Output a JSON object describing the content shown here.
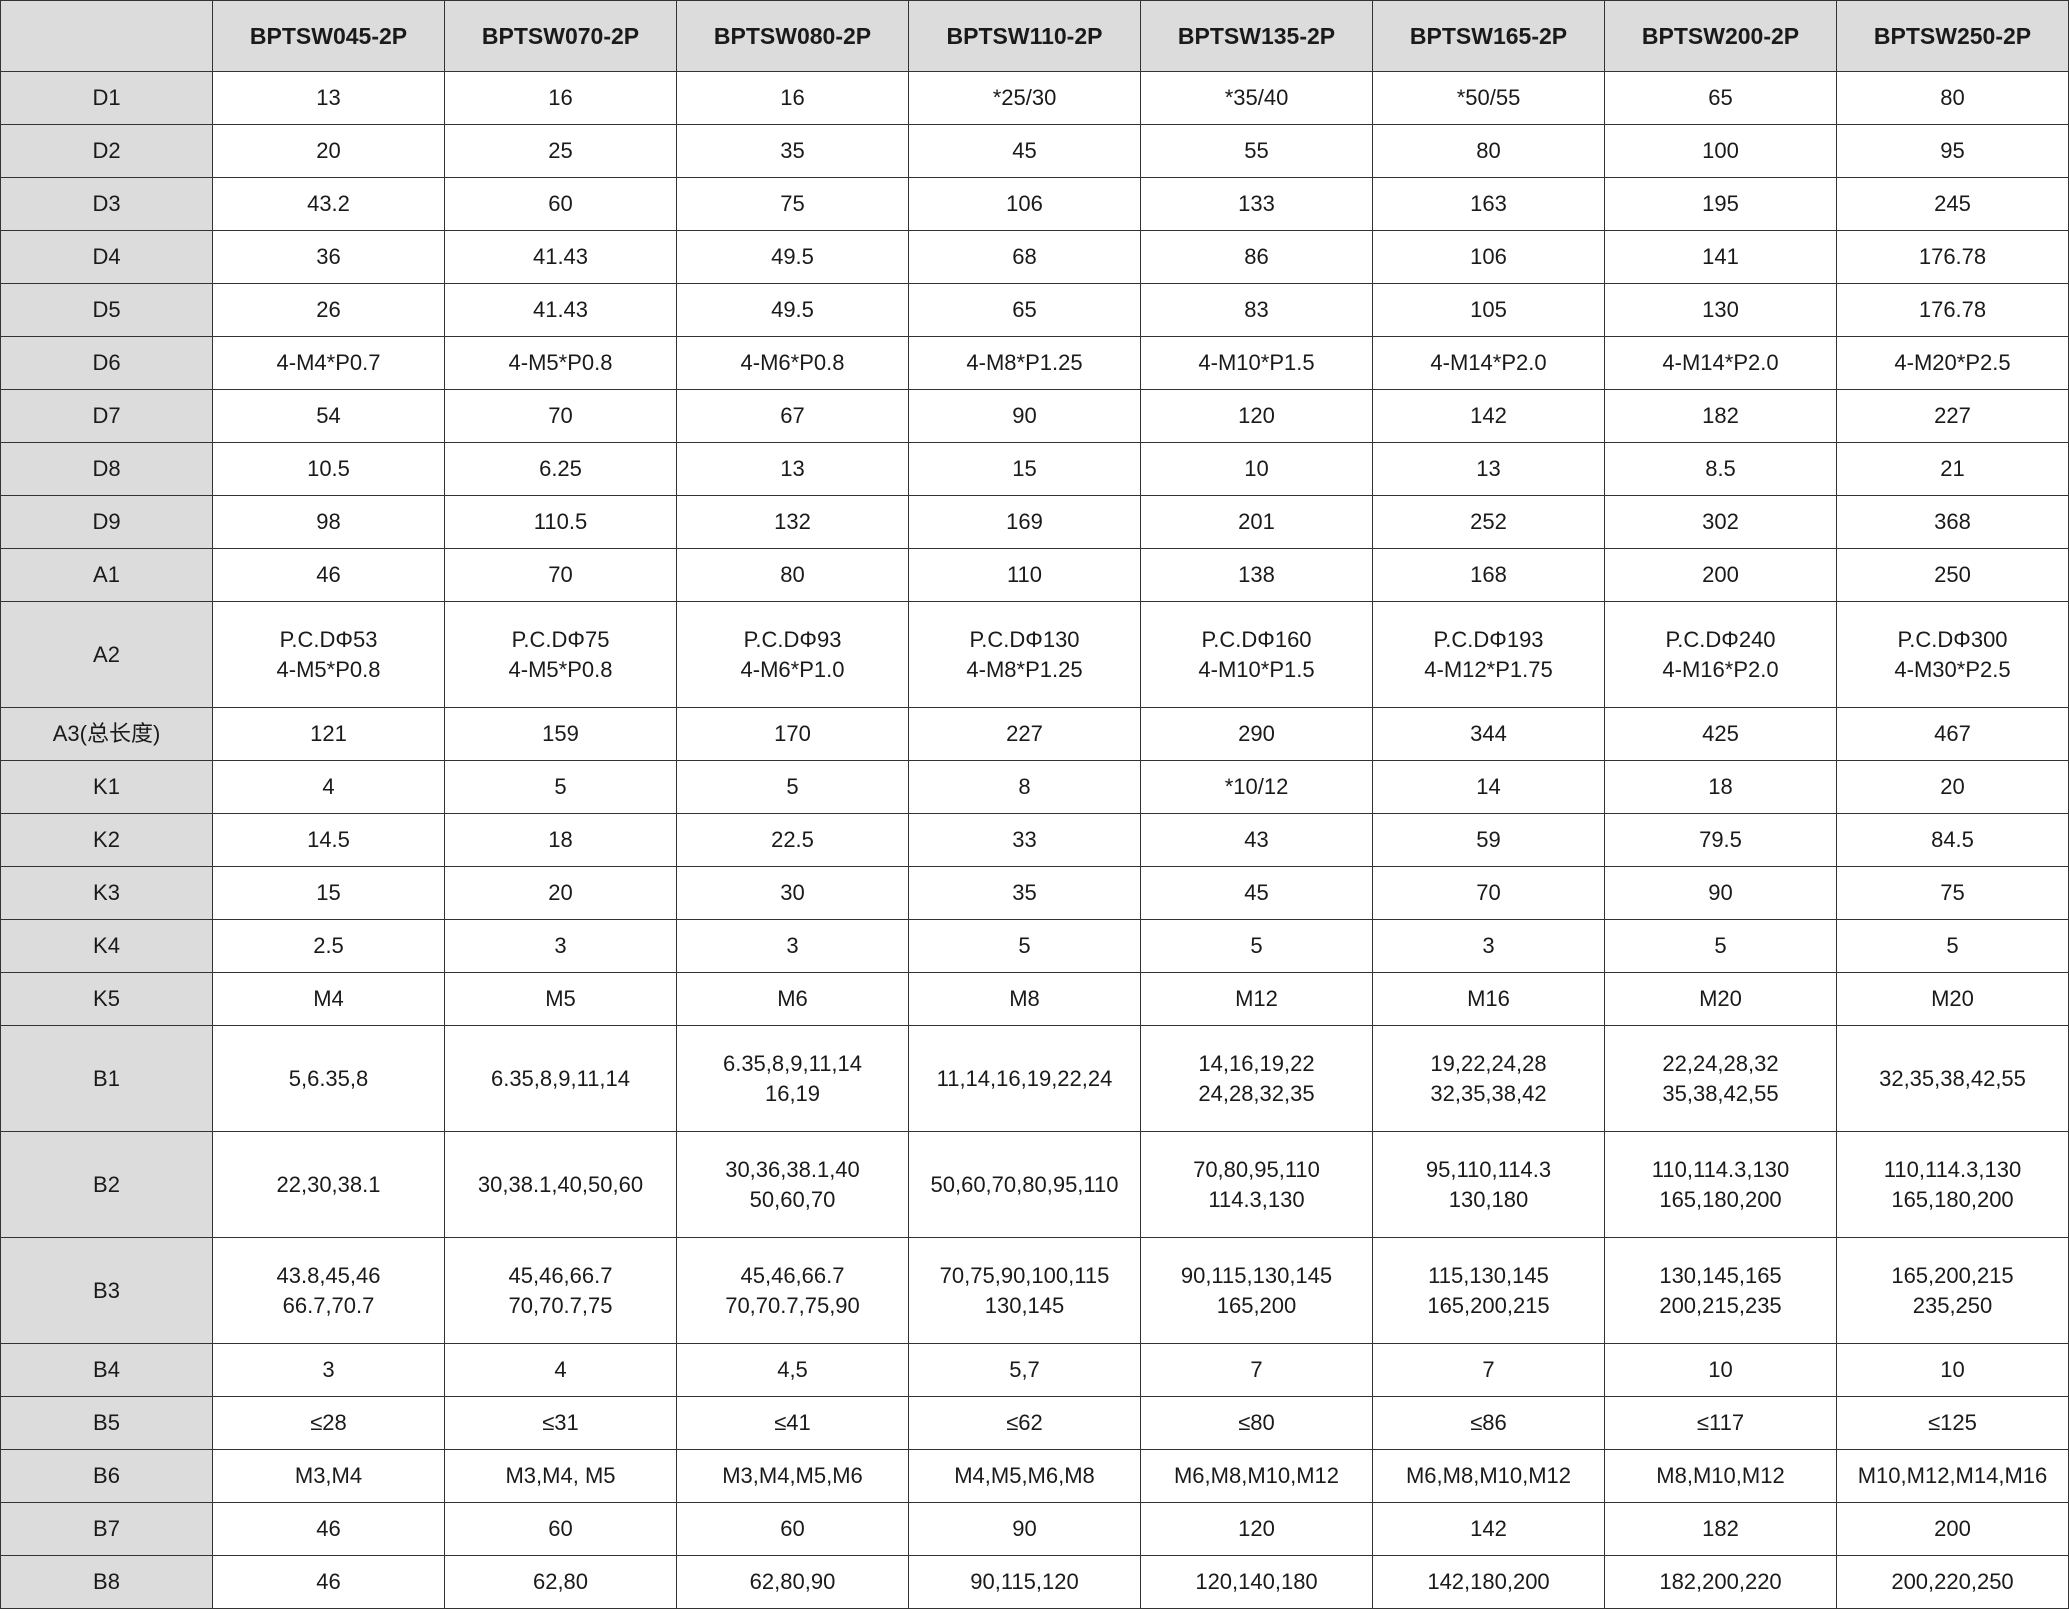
{
  "table": {
    "corner": "",
    "columns": [
      "BPTSW045-2P",
      "BPTSW070-2P",
      "BPTSW080-2P",
      "BPTSW110-2P",
      "BPTSW135-2P",
      "BPTSW165-2P",
      "BPTSW200-2P",
      "BPTSW250-2P"
    ],
    "rows": [
      {
        "label": "D1",
        "tall": false,
        "values": [
          "13",
          "16",
          "16",
          "*25/30",
          "*35/40",
          "*50/55",
          "65",
          "80"
        ]
      },
      {
        "label": "D2",
        "tall": false,
        "values": [
          "20",
          "25",
          "35",
          "45",
          "55",
          "80",
          "100",
          "95"
        ]
      },
      {
        "label": "D3",
        "tall": false,
        "values": [
          "43.2",
          "60",
          "75",
          "106",
          "133",
          "163",
          "195",
          "245"
        ]
      },
      {
        "label": "D4",
        "tall": false,
        "values": [
          "36",
          "41.43",
          "49.5",
          "68",
          "86",
          "106",
          "141",
          "176.78"
        ]
      },
      {
        "label": "D5",
        "tall": false,
        "values": [
          "26",
          "41.43",
          "49.5",
          "65",
          "83",
          "105",
          "130",
          "176.78"
        ]
      },
      {
        "label": "D6",
        "tall": false,
        "values": [
          "4-M4*P0.7",
          "4-M5*P0.8",
          "4-M6*P0.8",
          "4-M8*P1.25",
          "4-M10*P1.5",
          "4-M14*P2.0",
          "4-M14*P2.0",
          "4-M20*P2.5"
        ]
      },
      {
        "label": "D7",
        "tall": false,
        "values": [
          "54",
          "70",
          "67",
          "90",
          "120",
          "142",
          "182",
          "227"
        ]
      },
      {
        "label": "D8",
        "tall": false,
        "values": [
          "10.5",
          "6.25",
          "13",
          "15",
          "10",
          "13",
          "8.5",
          "21"
        ]
      },
      {
        "label": "D9",
        "tall": false,
        "values": [
          "98",
          "110.5",
          "132",
          "169",
          "201",
          "252",
          "302",
          "368"
        ]
      },
      {
        "label": "A1",
        "tall": false,
        "values": [
          "46",
          "70",
          "80",
          "110",
          "138",
          "168",
          "200",
          "250"
        ]
      },
      {
        "label": "A2",
        "tall": true,
        "values": [
          "P.C.DΦ53\n4-M5*P0.8",
          "P.C.DΦ75\n4-M5*P0.8",
          "P.C.DΦ93\n4-M6*P1.0",
          "P.C.DΦ130\n4-M8*P1.25",
          "P.C.DΦ160\n4-M10*P1.5",
          "P.C.DΦ193\n4-M12*P1.75",
          "P.C.DΦ240\n4-M16*P2.0",
          "P.C.DΦ300\n4-M30*P2.5"
        ]
      },
      {
        "label": "A3(总长度)",
        "tall": false,
        "values": [
          "121",
          "159",
          "170",
          "227",
          "290",
          "344",
          "425",
          "467"
        ]
      },
      {
        "label": "K1",
        "tall": false,
        "values": [
          "4",
          "5",
          "5",
          "8",
          "*10/12",
          "14",
          "18",
          "20"
        ]
      },
      {
        "label": "K2",
        "tall": false,
        "values": [
          "14.5",
          "18",
          "22.5",
          "33",
          "43",
          "59",
          "79.5",
          "84.5"
        ]
      },
      {
        "label": "K3",
        "tall": false,
        "values": [
          "15",
          "20",
          "30",
          "35",
          "45",
          "70",
          "90",
          "75"
        ]
      },
      {
        "label": "K4",
        "tall": false,
        "values": [
          "2.5",
          "3",
          "3",
          "5",
          "5",
          "3",
          "5",
          "5"
        ]
      },
      {
        "label": "K5",
        "tall": false,
        "values": [
          "M4",
          "M5",
          "M6",
          "M8",
          "M12",
          "M16",
          "M20",
          "M20"
        ]
      },
      {
        "label": "B1",
        "tall": true,
        "values": [
          "5,6.35,8",
          "6.35,8,9,11,14",
          "6.35,8,9,11,14\n16,19",
          "11,14,16,19,22,24",
          "14,16,19,22\n24,28,32,35",
          "19,22,24,28\n32,35,38,42",
          "22,24,28,32\n35,38,42,55",
          "32,35,38,42,55"
        ]
      },
      {
        "label": "B2",
        "tall": true,
        "values": [
          "22,30,38.1",
          "30,38.1,40,50,60",
          "30,36,38.1,40\n50,60,70",
          "50,60,70,80,95,110",
          "70,80,95,110\n114.3,130",
          "95,110,114.3\n130,180",
          "110,114.3,130\n165,180,200",
          "110,114.3,130\n165,180,200"
        ]
      },
      {
        "label": "B3",
        "tall": true,
        "values": [
          "43.8,45,46\n66.7,70.7",
          "45,46,66.7\n70,70.7,75",
          "45,46,66.7\n70,70.7,75,90",
          "70,75,90,100,115\n130,145",
          "90,115,130,145\n165,200",
          "115,130,145\n165,200,215",
          "130,145,165\n200,215,235",
          "165,200,215\n235,250"
        ]
      },
      {
        "label": "B4",
        "tall": false,
        "values": [
          "3",
          "4",
          "4,5",
          "5,7",
          "7",
          "7",
          "10",
          "10"
        ]
      },
      {
        "label": "B5",
        "tall": false,
        "values": [
          "≤28",
          "≤31",
          "≤41",
          "≤62",
          "≤80",
          "≤86",
          "≤117",
          "≤125"
        ]
      },
      {
        "label": "B6",
        "tall": false,
        "values": [
          "M3,M4",
          "M3,M4, M5",
          "M3,M4,M5,M6",
          "M4,M5,M6,M8",
          "M6,M8,M10,M12",
          "M6,M8,M10,M12",
          "M8,M10,M12",
          "M10,M12,M14,M16"
        ]
      },
      {
        "label": "B7",
        "tall": false,
        "values": [
          "46",
          "60",
          "60",
          "90",
          "120",
          "142",
          "182",
          "200"
        ]
      },
      {
        "label": "B8",
        "tall": false,
        "values": [
          "46",
          "62,80",
          "62,80,90",
          "90,115,120",
          "120,140,180",
          "142,180,200",
          "182,200,220",
          "200,220,250"
        ]
      }
    ]
  },
  "colors": {
    "header_bg": "#dcdcdc",
    "border": "#333333",
    "cell_bg": "#ffffff"
  }
}
